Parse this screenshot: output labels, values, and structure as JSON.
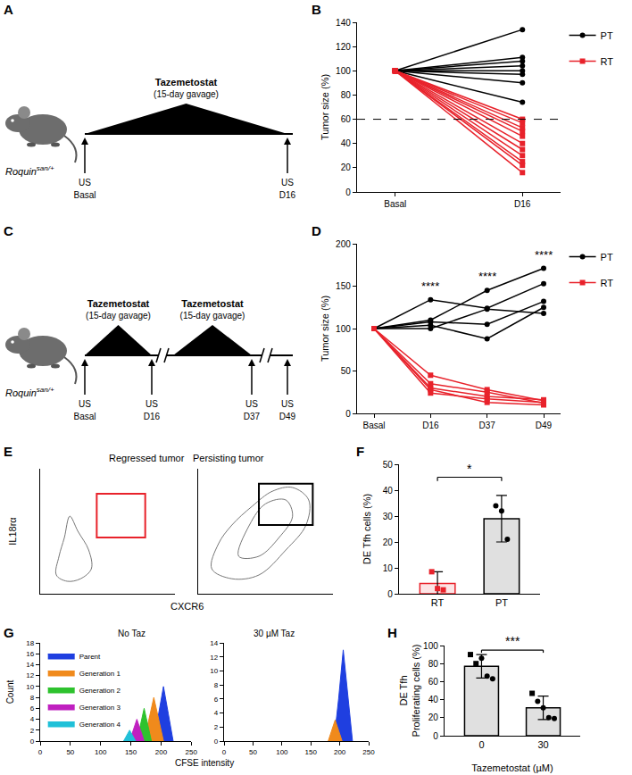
{
  "diagrams": [
    {
      "panel": "A",
      "subject": {
        "text": "Roquin",
        "superscript": "san/+"
      },
      "timepoints": [
        {
          "method": "US",
          "label": "Basal"
        },
        {
          "method": "US",
          "label": "D16"
        }
      ],
      "treatments": [
        {
          "label": "Tazemetostat",
          "sublabel": "(15-day gavage)",
          "span": [
            0,
            1
          ]
        }
      ]
    },
    {
      "panel": "C",
      "subject": {
        "text": "Roquin",
        "superscript": "san/+"
      },
      "timepoints": [
        {
          "method": "US",
          "label": "Basal"
        },
        {
          "method": "US",
          "label": "D16"
        },
        {
          "method": "US",
          "label": "D37"
        },
        {
          "method": "US",
          "label": "D49"
        }
      ],
      "treatments": [
        {
          "label": "Tazemetostat",
          "sublabel": "(15-day gavage)",
          "span": [
            0,
            1
          ]
        },
        {
          "label": "Tazemetostat",
          "sublabel": "(15-day gavage)",
          "span": [
            1,
            2
          ]
        }
      ]
    }
  ],
  "chart_data": [
    {
      "panel": "B",
      "type": "line",
      "ylabel": "Tumor size (%)",
      "categories": [
        "Basal",
        "D16"
      ],
      "ylim": [
        0,
        140
      ],
      "yticks": [
        0,
        20,
        40,
        60,
        80,
        100,
        120,
        140
      ],
      "legend": "right",
      "hline": {
        "value": 60,
        "line_style": "dashed"
      },
      "series": [
        {
          "name": "PT",
          "color": "#000000",
          "marker": "circle",
          "values": [
            [
              100,
              134
            ],
            [
              100,
              111
            ],
            [
              100,
              108
            ],
            [
              100,
              104
            ],
            [
              100,
              100
            ],
            [
              100,
              97
            ],
            [
              100,
              90
            ],
            [
              100,
              74
            ]
          ]
        },
        {
          "name": "RT",
          "color": "#e8222b",
          "marker": "square",
          "values": [
            [
              100,
              60
            ],
            [
              100,
              57
            ],
            [
              100,
              53
            ],
            [
              100,
              50
            ],
            [
              100,
              46
            ],
            [
              100,
              40
            ],
            [
              100,
              35
            ],
            [
              100,
              30
            ],
            [
              100,
              25
            ],
            [
              100,
              22
            ],
            [
              100,
              16
            ]
          ]
        }
      ]
    },
    {
      "panel": "D",
      "type": "line",
      "ylabel": "Tumor size (%)",
      "categories": [
        "Basal",
        "D16",
        "D37",
        "D49"
      ],
      "ylim": [
        0,
        200
      ],
      "yticks": [
        0,
        50,
        100,
        150,
        200
      ],
      "legend": "right",
      "annotations": [
        {
          "category": "D16",
          "y": 140,
          "text": "****"
        },
        {
          "category": "D37",
          "y": 152,
          "text": "****"
        },
        {
          "category": "D49",
          "y": 177,
          "text": "****"
        }
      ],
      "series": [
        {
          "name": "PT",
          "color": "#000000",
          "marker": "circle",
          "values": [
            [
              100,
              110,
              145,
              171
            ],
            [
              100,
              134,
              124,
              153
            ],
            [
              100,
              108,
              105,
              132
            ],
            [
              100,
              104,
              88,
              125
            ],
            [
              100,
              100,
              123,
              118
            ]
          ]
        },
        {
          "name": "RT",
          "color": "#e8222b",
          "marker": "square",
          "values": [
            [
              100,
              45,
              28,
              15
            ],
            [
              100,
              35,
              25,
              12
            ],
            [
              100,
              30,
              20,
              16
            ],
            [
              100,
              28,
              13,
              10
            ],
            [
              100,
              24,
              17,
              13
            ]
          ]
        }
      ]
    },
    {
      "panel": "E",
      "type": "gate",
      "xlabel": "CXCR6",
      "ylabel": "IL18rα",
      "xlim": [
        0,
        100
      ],
      "ylim": [
        0,
        100
      ],
      "tick_labels": false,
      "plots": [
        {
          "title": "Regressed tumor",
          "color": "#e8222b",
          "gate": {
            "x": [
              42,
              78
            ],
            "y": [
              45,
              80
            ]
          },
          "populations": [
            {
              "x": [
                12,
                20,
                30,
                38,
                36,
                28,
                22,
                18,
                14,
                12
              ],
              "y": [
                15,
                10,
                12,
                20,
                35,
                50,
                62,
                45,
                30,
                15
              ]
            }
          ]
        },
        {
          "title": "Persisting tumor",
          "color": "#000000",
          "gate": {
            "x": [
              45,
              85
            ],
            "y": [
              55,
              88
            ]
          },
          "populations": [
            {
              "x": [
                10,
                25,
                45,
                65,
                80,
                82,
                70,
                55,
                40,
                25,
                15,
                10
              ],
              "y": [
                20,
                12,
                15,
                35,
                55,
                75,
                85,
                82,
                70,
                55,
                40,
                20
              ]
            },
            {
              "x": [
                30,
                45,
                60,
                70,
                65,
                50,
                38,
                30
              ],
              "y": [
                30,
                30,
                45,
                62,
                75,
                72,
                55,
                30
              ]
            }
          ]
        }
      ]
    },
    {
      "panel": "F",
      "type": "bar",
      "ylabel": "DE Tfh cells (%)",
      "categories": [
        "RT",
        "PT"
      ],
      "values": [
        4,
        29
      ],
      "errors": [
        4.5,
        9
      ],
      "colors": [
        "#e8222b",
        "#000000"
      ],
      "ylim": [
        0,
        50
      ],
      "yticks": [
        0,
        10,
        20,
        30,
        40,
        50
      ],
      "points": [
        {
          "category": "RT",
          "marker": "square",
          "color": "#e8222b",
          "values": [
            8.5,
            2,
            1.5
          ]
        },
        {
          "category": "PT",
          "marker": "circle",
          "color": "#000000",
          "values": [
            34,
            32,
            21
          ]
        }
      ],
      "significance": {
        "text": "*",
        "y": 45
      }
    },
    {
      "panel": "G",
      "type": "area",
      "xlabel": "CFSE intensity",
      "ylabel": "Count",
      "legend": "upper left",
      "plots": [
        {
          "title": "No Taz",
          "xlim": [
            0,
            250
          ],
          "xticks": [
            0,
            50,
            100,
            150,
            200,
            250
          ],
          "ylim": [
            0,
            18
          ],
          "yticks": [
            0,
            2,
            4,
            6,
            8,
            10,
            12,
            14,
            16,
            18
          ],
          "series": [
            {
              "name": "Parent",
              "color": "#1f3fe0",
              "x": [
                188,
                196,
                204,
                212,
                220
              ],
              "values": [
                0,
                5,
                10,
                5,
                0
              ]
            },
            {
              "name": "Generation 1",
              "color": "#f08a1c",
              "x": [
                172,
                180,
                188,
                196,
                204
              ],
              "values": [
                0,
                4,
                8,
                4,
                0
              ]
            },
            {
              "name": "Generation 2",
              "color": "#2ec22e",
              "x": [
                160,
                166,
                172,
                178,
                184
              ],
              "values": [
                0,
                3,
                6,
                3,
                0
              ]
            },
            {
              "name": "Generation 3",
              "color": "#c020c0",
              "x": [
                148,
                154,
                160,
                166,
                172
              ],
              "values": [
                0,
                2,
                4,
                2,
                0
              ]
            },
            {
              "name": "Generation 4",
              "color": "#20c0d8",
              "x": [
                138,
                143,
                148,
                153,
                158
              ],
              "values": [
                0,
                1,
                2,
                1,
                0
              ]
            }
          ]
        },
        {
          "title": "30 µM Taz",
          "xlim": [
            0,
            250
          ],
          "xticks": [
            0,
            50,
            100,
            150,
            200,
            250
          ],
          "ylim": [
            0,
            14
          ],
          "yticks": [
            0,
            2,
            4,
            6,
            8,
            10,
            12,
            14
          ],
          "series": [
            {
              "name": "Parent",
              "color": "#1f3fe0",
              "x": [
                190,
                198,
                206,
                214,
                222
              ],
              "values": [
                0,
                6,
                13,
                6,
                0
              ]
            },
            {
              "name": "Generation 1",
              "color": "#f08a1c",
              "x": [
                180,
                186,
                192,
                198,
                204
              ],
              "values": [
                0,
                1.5,
                3,
                1.5,
                0
              ]
            }
          ]
        }
      ]
    },
    {
      "panel": "H",
      "type": "bar",
      "ylabel": [
        "DE Tfh",
        "Proliferating cells (%)"
      ],
      "xlabel": "Tazemetostat (µM)",
      "categories": [
        "0",
        "30"
      ],
      "values": [
        77,
        31
      ],
      "errors": [
        13,
        13
      ],
      "colors": [
        "#000000",
        "#000000"
      ],
      "ylim": [
        0,
        100
      ],
      "yticks": [
        0,
        20,
        40,
        60,
        80,
        100
      ],
      "points": [
        {
          "category": "0",
          "marker": "square",
          "color": "#000000",
          "values": [
            90,
            80
          ]
        },
        {
          "category": "0",
          "marker": "circle",
          "color": "#000000",
          "values": [
            86,
            66,
            63
          ]
        },
        {
          "category": "30",
          "marker": "square",
          "color": "#000000",
          "values": [
            47
          ]
        },
        {
          "category": "30",
          "marker": "circle",
          "color": "#000000",
          "values": [
            38,
            31,
            20,
            19
          ]
        }
      ],
      "significance": {
        "text": "***",
        "y": 95
      }
    }
  ]
}
